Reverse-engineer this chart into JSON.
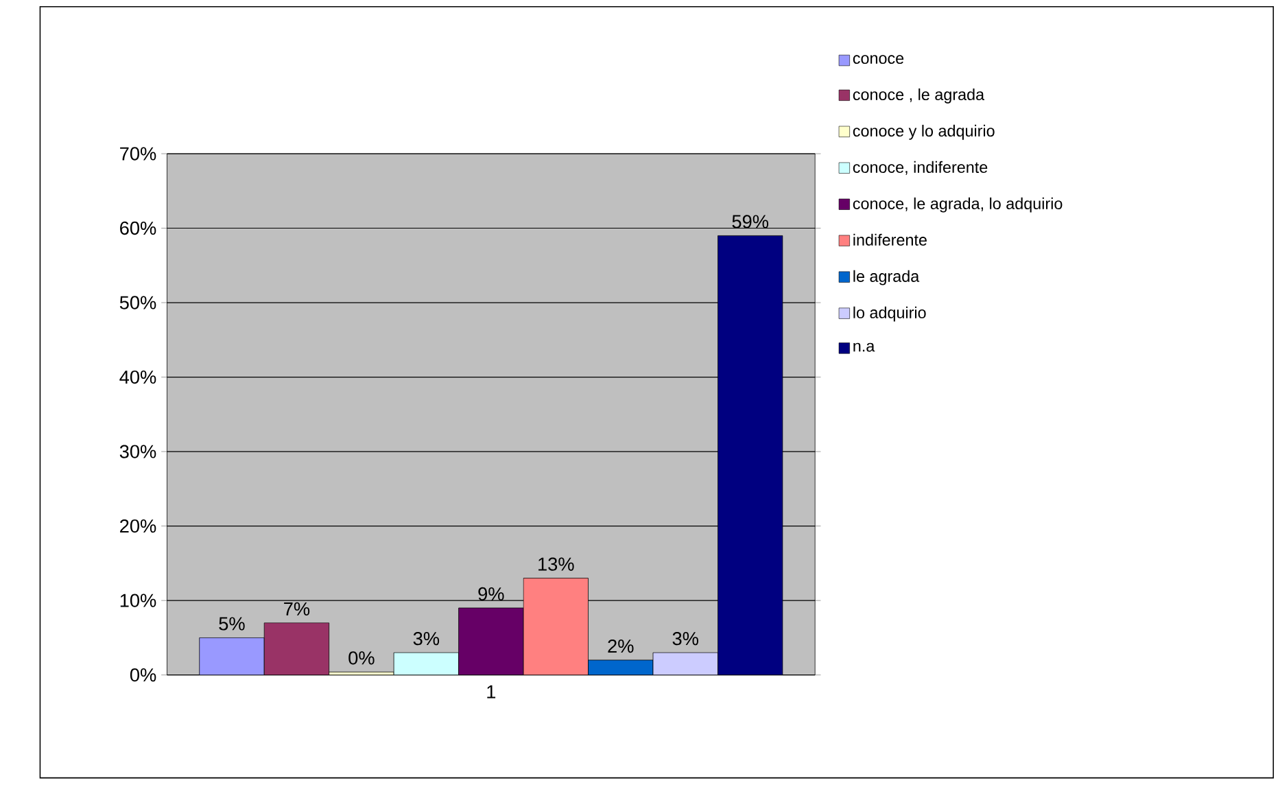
{
  "chart_data": {
    "type": "bar",
    "categories": [
      "1"
    ],
    "series": [
      {
        "name": "conoce",
        "color": "#9999ff",
        "values": [
          5
        ],
        "value_labels": [
          "5%"
        ]
      },
      {
        "name": "conoce , le agrada",
        "color": "#993366",
        "values": [
          7
        ],
        "value_labels": [
          "7%"
        ]
      },
      {
        "name": "conoce y lo adquirio",
        "color": "#ffffcc",
        "values": [
          0.4
        ],
        "value_labels": [
          "0%"
        ]
      },
      {
        "name": "conoce, indiferente",
        "color": "#ccffff",
        "values": [
          3
        ],
        "value_labels": [
          "3%"
        ]
      },
      {
        "name": "conoce, le agrada, lo adquirio",
        "color": "#660066",
        "values": [
          9
        ],
        "value_labels": [
          "9%"
        ]
      },
      {
        "name": "indiferente",
        "color": "#ff8080",
        "values": [
          13
        ],
        "value_labels": [
          "13%"
        ]
      },
      {
        "name": "le agrada",
        "color": "#0066cc",
        "values": [
          2
        ],
        "value_labels": [
          "2%"
        ]
      },
      {
        "name": "lo adquirio",
        "color": "#ccccff",
        "values": [
          3
        ],
        "value_labels": [
          "3%"
        ]
      },
      {
        "name": "n.a",
        "color": "#000080",
        "values": [
          59
        ],
        "value_labels": [
          "59%"
        ]
      }
    ],
    "ylim": [
      0,
      70
    ],
    "yticks": [
      {
        "value": 0,
        "label": "0%"
      },
      {
        "value": 10,
        "label": "10%"
      },
      {
        "value": 20,
        "label": "20%"
      },
      {
        "value": 30,
        "label": "30%"
      },
      {
        "value": 40,
        "label": "40%"
      },
      {
        "value": 50,
        "label": "50%"
      },
      {
        "value": 60,
        "label": "60%"
      },
      {
        "value": 70,
        "label": "70%"
      }
    ],
    "grid": "y",
    "legend": "right"
  }
}
